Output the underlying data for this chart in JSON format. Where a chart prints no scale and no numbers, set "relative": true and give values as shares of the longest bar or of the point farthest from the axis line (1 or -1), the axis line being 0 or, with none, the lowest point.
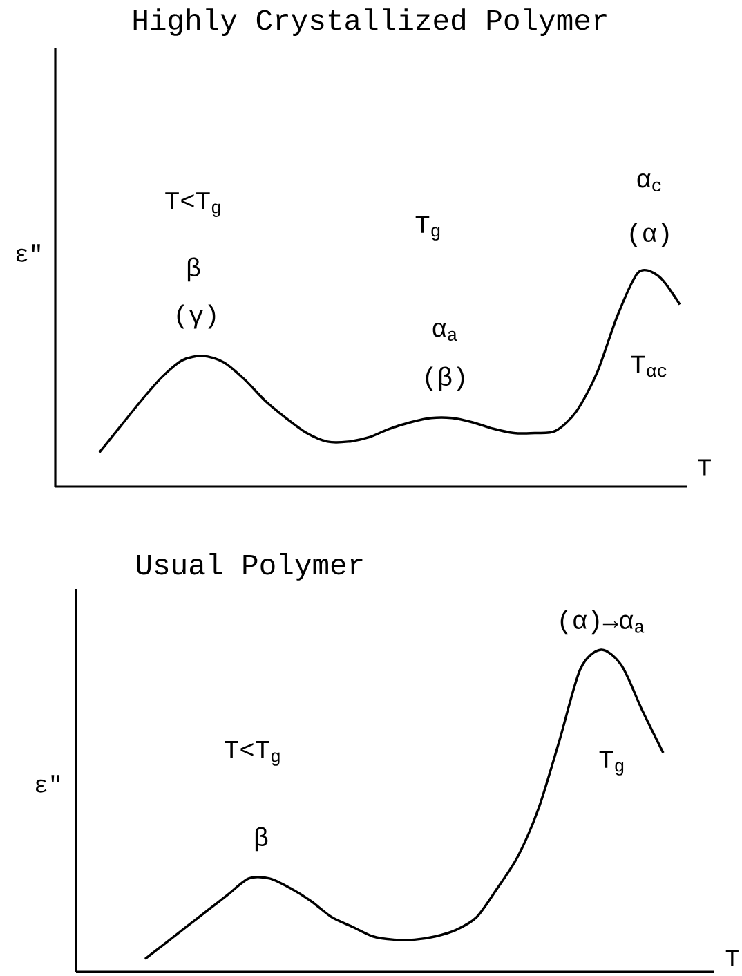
{
  "chart_data": [
    {
      "type": "line",
      "title": "Highly Crystallized Polymer",
      "xlabel": "T",
      "ylabel": "ε\"",
      "relative": true,
      "color": "#000000",
      "categories": [
        null,
        null,
        null,
        null,
        null,
        null,
        null,
        null,
        null,
        null,
        null,
        null,
        null,
        null,
        null,
        null,
        null,
        null,
        null,
        null,
        null,
        null,
        null,
        null,
        null,
        null,
        null,
        null,
        null
      ],
      "values": [
        0.16,
        0.28,
        0.4,
        0.51,
        0.59,
        0.61,
        0.58,
        0.5,
        0.4,
        0.32,
        0.25,
        0.21,
        0.21,
        0.23,
        0.27,
        0.3,
        0.32,
        0.32,
        0.3,
        0.27,
        0.25,
        0.25,
        0.26,
        0.35,
        0.53,
        0.8,
        1.0,
        0.98,
        0.85
      ],
      "annotations": [
        "T<T$_{g}$",
        "β",
        "(γ)",
        "T$_{g}$",
        "α$_{a}$",
        "(β)",
        "α$_{c}$",
        "(α)",
        "T$_{αc}$"
      ]
    },
    {
      "type": "line",
      "title": "Usual Polymer",
      "xlabel": "T",
      "ylabel": "ε\"",
      "relative": true,
      "color": "#000000",
      "categories": [
        null,
        null,
        null,
        null,
        null,
        null,
        null,
        null,
        null,
        null,
        null,
        null,
        null,
        null,
        null,
        null,
        null,
        null,
        null,
        null,
        null,
        null,
        null,
        null,
        null,
        null
      ],
      "values": [
        0.04,
        0.09,
        0.14,
        0.19,
        0.24,
        0.29,
        0.29,
        0.26,
        0.22,
        0.17,
        0.14,
        0.11,
        0.1,
        0.1,
        0.11,
        0.13,
        0.17,
        0.26,
        0.36,
        0.51,
        0.72,
        0.94,
        1.0,
        0.95,
        0.81,
        0.68
      ],
      "annotations": [
        "T<T$_{g}$",
        "β",
        "(α)→α$_{a}$",
        "T$_{g}$"
      ]
    }
  ]
}
